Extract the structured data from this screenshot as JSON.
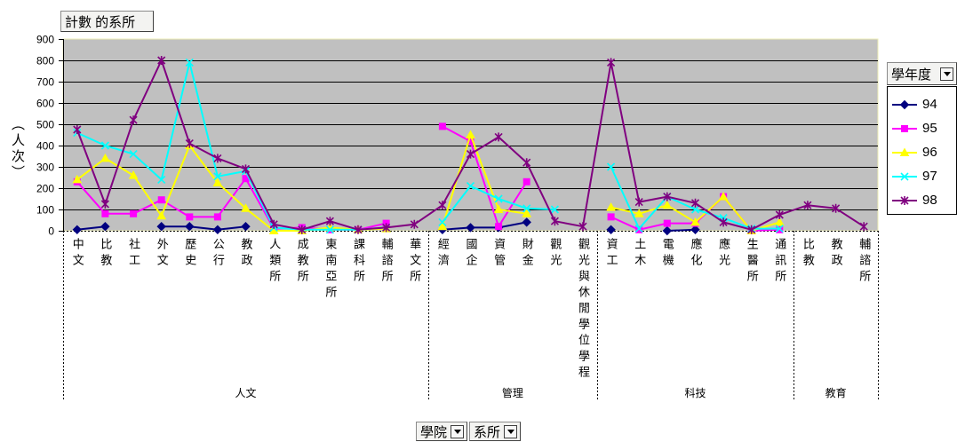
{
  "pivot": {
    "data_field": "計數 的系所",
    "series_field": "學年度",
    "row_fields": [
      "學院",
      "系所"
    ]
  },
  "chart_data": {
    "type": "line",
    "ylabel": "（人次）",
    "ylim": [
      0,
      900
    ],
    "yticks": [
      0,
      100,
      200,
      300,
      400,
      500,
      600,
      700,
      800,
      900
    ],
    "grid": true,
    "plot_background": "#C0C0C0",
    "legend_position": "right",
    "groups": [
      {
        "name": "人文",
        "categories": [
          "中文",
          "比教",
          "社工",
          "外文",
          "歷史",
          "公行",
          "教政",
          "人類所",
          "成教所",
          "東南亞所",
          "課科所",
          "輔諮所",
          "華文所"
        ]
      },
      {
        "name": "管理",
        "categories": [
          "經濟",
          "國企",
          "資管",
          "財金",
          "觀光",
          "觀光與休閒學位學程"
        ]
      },
      {
        "name": "科技",
        "categories": [
          "資工",
          "土木",
          "電機",
          "應化",
          "應光",
          "生醫所",
          "通訊所"
        ]
      },
      {
        "name": "教育",
        "categories": [
          "比教",
          "教政",
          "輔諮所"
        ]
      }
    ],
    "series": [
      {
        "name": "94",
        "color": "#000080",
        "marker": "diamond",
        "values": [
          5,
          20,
          null,
          20,
          20,
          5,
          20,
          null,
          null,
          null,
          null,
          null,
          null,
          5,
          15,
          15,
          40,
          null,
          null,
          5,
          null,
          0,
          5,
          null,
          null,
          null,
          null,
          null,
          null
        ]
      },
      {
        "name": "95",
        "color": "#FF00FF",
        "marker": "square",
        "values": [
          230,
          80,
          80,
          145,
          65,
          65,
          245,
          10,
          15,
          5,
          5,
          35,
          null,
          490,
          420,
          20,
          230,
          null,
          null,
          65,
          5,
          35,
          35,
          160,
          0,
          5,
          null,
          null,
          null
        ]
      },
      {
        "name": "96",
        "color": "#FFFF00",
        "marker": "triangle",
        "values": [
          240,
          340,
          260,
          70,
          400,
          225,
          105,
          0,
          0,
          15,
          5,
          10,
          null,
          20,
          450,
          100,
          80,
          null,
          null,
          110,
          80,
          120,
          40,
          160,
          0,
          40,
          null,
          null,
          null
        ]
      },
      {
        "name": "97",
        "color": "#00FFFF",
        "marker": "x",
        "values": [
          460,
          400,
          360,
          240,
          790,
          255,
          280,
          15,
          5,
          5,
          5,
          15,
          null,
          40,
          210,
          150,
          105,
          100,
          null,
          300,
          10,
          160,
          100,
          60,
          10,
          10,
          null,
          null,
          null
        ]
      },
      {
        "name": "98",
        "color": "#800080",
        "marker": "asterisk",
        "values": [
          475,
          125,
          520,
          800,
          410,
          340,
          290,
          30,
          5,
          45,
          5,
          15,
          30,
          120,
          360,
          440,
          320,
          45,
          20,
          790,
          135,
          160,
          130,
          40,
          5,
          75,
          120,
          105,
          20
        ]
      }
    ]
  }
}
